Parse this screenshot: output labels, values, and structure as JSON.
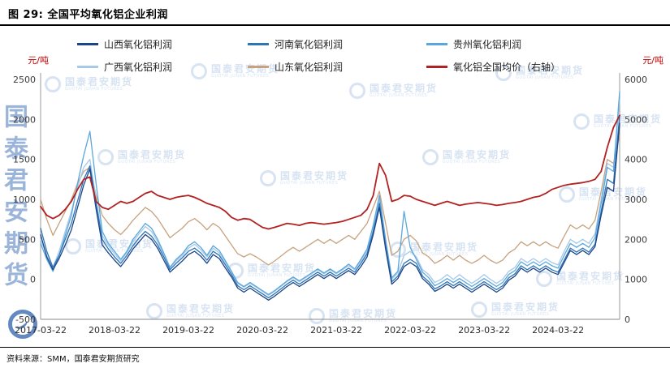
{
  "header": {
    "title": "图 29: 全国平均氧化铝企业利润"
  },
  "footer": {
    "source": "资料来源：SMM，国泰君安期货研究"
  },
  "watermark": {
    "cn": "国泰君安期货",
    "en": "GUOTAI JUNAN FUTURES"
  },
  "chart_data": {
    "type": "line",
    "title": "全国平均氧化铝企业利润",
    "legend_position": "top",
    "grid": false,
    "x_count": 95,
    "x_ticks": [
      {
        "i": 0,
        "label": "2017-03-22"
      },
      {
        "i": 12,
        "label": "2018-03-22"
      },
      {
        "i": 24,
        "label": "2019-03-22"
      },
      {
        "i": 36,
        "label": "2020-03-22"
      },
      {
        "i": 48,
        "label": "2021-03-22"
      },
      {
        "i": 60,
        "label": "2022-03-22"
      },
      {
        "i": 72,
        "label": "2023-03-22"
      },
      {
        "i": 84,
        "label": "2024-03-22"
      }
    ],
    "left_axis": {
      "unit": "元/吨",
      "min": -500,
      "max": 2500,
      "ticks": [
        -500,
        0,
        500,
        1000,
        1500,
        2000,
        2500
      ]
    },
    "right_axis": {
      "unit": "元/吨",
      "min": 0,
      "max": 6000,
      "ticks": [
        0,
        1000,
        2000,
        3000,
        4000,
        5000,
        6000
      ]
    },
    "series": [
      {
        "name": "山西氧化铝利润",
        "axis": "left",
        "color": "#1c4587",
        "values": [
          560,
          280,
          120,
          260,
          430,
          620,
          900,
          1180,
          1380,
          880,
          430,
          330,
          240,
          160,
          260,
          380,
          470,
          560,
          500,
          390,
          240,
          90,
          160,
          230,
          310,
          350,
          290,
          200,
          310,
          260,
          140,
          30,
          -110,
          -160,
          -110,
          -160,
          -210,
          -260,
          -210,
          -150,
          -90,
          -40,
          -90,
          -40,
          10,
          60,
          10,
          60,
          10,
          60,
          110,
          60,
          160,
          280,
          560,
          900,
          380,
          -60,
          10,
          160,
          210,
          160,
          10,
          -60,
          -150,
          -110,
          -60,
          -110,
          -60,
          -110,
          -160,
          -110,
          -60,
          -110,
          -160,
          -110,
          -10,
          40,
          140,
          90,
          140,
          90,
          140,
          90,
          60,
          210,
          360,
          310,
          360,
          310,
          410,
          800,
          1150,
          1100,
          1950
        ]
      },
      {
        "name": "河南氧化铝利润",
        "axis": "left",
        "color": "#2e75b6",
        "values": [
          640,
          350,
          150,
          300,
          500,
          700,
          980,
          1250,
          1420,
          950,
          500,
          380,
          280,
          200,
          300,
          420,
          520,
          600,
          540,
          430,
          280,
          120,
          200,
          270,
          350,
          390,
          330,
          240,
          350,
          300,
          180,
          60,
          -80,
          -130,
          -80,
          -130,
          -180,
          -230,
          -180,
          -120,
          -60,
          -10,
          -60,
          -10,
          40,
          90,
          40,
          90,
          40,
          90,
          140,
          90,
          200,
          320,
          600,
          950,
          420,
          -30,
          40,
          200,
          250,
          200,
          40,
          -30,
          -120,
          -80,
          -30,
          -80,
          -30,
          -80,
          -130,
          -80,
          -30,
          -80,
          -130,
          -80,
          20,
          70,
          170,
          120,
          170,
          120,
          170,
          120,
          90,
          240,
          390,
          340,
          390,
          340,
          440,
          850,
          1250,
          1200,
          2050
        ]
      },
      {
        "name": "贵州氧化铝利润",
        "axis": "left",
        "color": "#5aa7dd",
        "values": [
          450,
          250,
          100,
          300,
          550,
          800,
          1200,
          1550,
          1850,
          1200,
          600,
          450,
          350,
          250,
          350,
          500,
          600,
          700,
          640,
          500,
          330,
          150,
          250,
          320,
          420,
          470,
          400,
          300,
          420,
          360,
          230,
          100,
          -40,
          -90,
          -40,
          -90,
          -140,
          -190,
          -140,
          -80,
          -20,
          30,
          -20,
          30,
          80,
          130,
          80,
          130,
          80,
          130,
          190,
          130,
          250,
          380,
          680,
          1050,
          500,
          20,
          100,
          850,
          400,
          250,
          90,
          20,
          -80,
          -40,
          10,
          -40,
          10,
          -40,
          -90,
          -40,
          10,
          -40,
          -90,
          -40,
          60,
          110,
          220,
          170,
          220,
          170,
          220,
          170,
          140,
          300,
          450,
          400,
          450,
          400,
          520,
          950,
          1400,
          1350,
          2350
        ]
      },
      {
        "name": "广西氧化铝利润",
        "axis": "left",
        "color": "#a6c9e8",
        "values": [
          500,
          300,
          150,
          350,
          600,
          850,
          1150,
          1400,
          1500,
          1000,
          550,
          420,
          320,
          230,
          330,
          470,
          570,
          660,
          600,
          470,
          310,
          140,
          230,
          300,
          390,
          440,
          370,
          280,
          390,
          330,
          210,
          90,
          -50,
          -100,
          -50,
          -100,
          -150,
          -200,
          -150,
          -90,
          -30,
          20,
          -30,
          20,
          70,
          120,
          70,
          120,
          70,
          120,
          170,
          120,
          230,
          350,
          640,
          1000,
          460,
          0,
          80,
          300,
          350,
          280,
          120,
          60,
          -40,
          0,
          60,
          0,
          60,
          0,
          -50,
          0,
          60,
          0,
          -50,
          0,
          100,
          150,
          260,
          210,
          260,
          210,
          260,
          210,
          180,
          350,
          500,
          450,
          500,
          450,
          570,
          1000,
          1450,
          1400,
          2250
        ]
      },
      {
        "name": "山东氧化铝利润",
        "axis": "left",
        "color": "#c7a27e",
        "values": [
          1000,
          750,
          550,
          700,
          850,
          1000,
          1200,
          1350,
          1400,
          1050,
          800,
          700,
          620,
          560,
          640,
          740,
          820,
          900,
          850,
          760,
          640,
          520,
          580,
          640,
          720,
          760,
          700,
          620,
          700,
          650,
          540,
          430,
          320,
          280,
          320,
          280,
          230,
          180,
          230,
          290,
          350,
          400,
          350,
          400,
          450,
          500,
          450,
          500,
          450,
          500,
          550,
          500,
          600,
          700,
          900,
          1100,
          700,
          300,
          350,
          500,
          550,
          480,
          330,
          280,
          200,
          240,
          300,
          240,
          300,
          240,
          200,
          240,
          300,
          240,
          200,
          240,
          330,
          380,
          470,
          420,
          470,
          420,
          470,
          420,
          390,
          540,
          680,
          630,
          680,
          630,
          740,
          1100,
          1500,
          1450,
          1800
        ]
      },
      {
        "name": "氧化铝全国均价（右轴）",
        "axis": "right",
        "color": "#b22222",
        "values": [
          2820,
          2600,
          2520,
          2600,
          2750,
          2950,
          3250,
          3500,
          3560,
          2950,
          2800,
          2750,
          2850,
          2950,
          2900,
          2950,
          3050,
          3150,
          3200,
          3100,
          3050,
          3000,
          3050,
          3080,
          3100,
          3050,
          2980,
          2900,
          2850,
          2800,
          2700,
          2550,
          2480,
          2520,
          2500,
          2400,
          2300,
          2260,
          2300,
          2350,
          2400,
          2380,
          2350,
          2400,
          2420,
          2400,
          2380,
          2400,
          2420,
          2450,
          2500,
          2550,
          2600,
          2750,
          3100,
          3900,
          3600,
          2950,
          3000,
          3100,
          3080,
          3000,
          2950,
          2900,
          2850,
          2900,
          2950,
          2900,
          2850,
          2880,
          2900,
          2920,
          2900,
          2880,
          2850,
          2870,
          2900,
          2920,
          2950,
          3000,
          3050,
          3080,
          3150,
          3250,
          3300,
          3350,
          3380,
          3400,
          3420,
          3450,
          3500,
          3700,
          4300,
          4800,
          5100
        ]
      }
    ]
  }
}
